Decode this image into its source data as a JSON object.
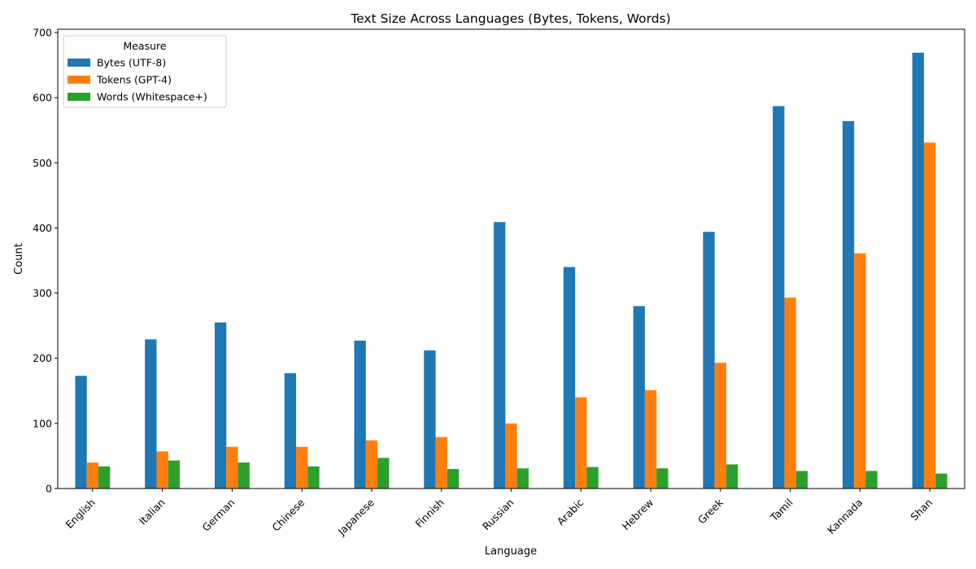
{
  "chart_data": {
    "type": "bar",
    "title": "Text Size Across Languages (Bytes, Tokens, Words)",
    "xlabel": "Language",
    "ylabel": "Count",
    "ylim": [
      0,
      705
    ],
    "yticks": [
      0,
      100,
      200,
      300,
      400,
      500,
      600,
      700
    ],
    "grid": false,
    "legend": {
      "title": "Measure",
      "placement": "top-left"
    },
    "categories": [
      "English",
      "Italian",
      "German",
      "Chinese",
      "Japanese",
      "Finnish",
      "Russian",
      "Arabic",
      "Hebrew",
      "Greek",
      "Tamil",
      "Kannada",
      "Shan"
    ],
    "series": [
      {
        "name": "Bytes (UTF-8)",
        "color": "#1f77b4",
        "values": [
          173,
          229,
          255,
          177,
          227,
          212,
          409,
          340,
          280,
          394,
          587,
          564,
          669
        ]
      },
      {
        "name": "Tokens (GPT-4)",
        "color": "#ff7f0e",
        "values": [
          40,
          57,
          64,
          64,
          74,
          79,
          100,
          140,
          151,
          193,
          293,
          361,
          531
        ]
      },
      {
        "name": "Words (Whitespace+)",
        "color": "#2ca02c",
        "values": [
          34,
          43,
          40,
          34,
          47,
          30,
          31,
          33,
          31,
          37,
          27,
          27,
          23
        ]
      }
    ]
  }
}
